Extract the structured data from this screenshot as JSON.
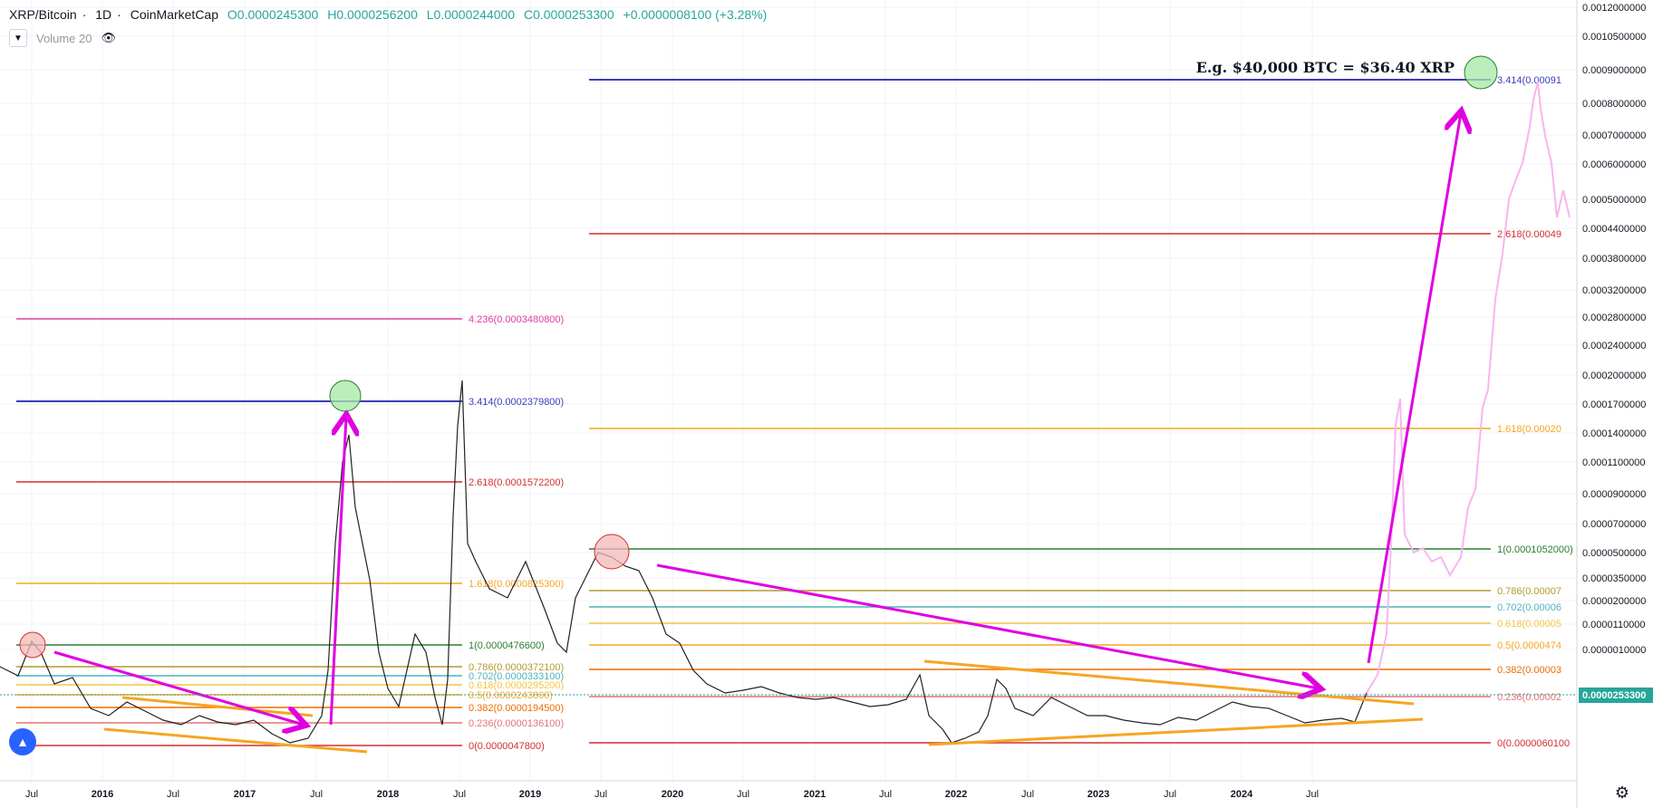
{
  "header": {
    "symbol": "XRP/Bitcoin",
    "interval": "1D",
    "source": "CoinMarketCap",
    "open": "O0.0000245300",
    "high": "H0.0000256200",
    "low": "L0.0000244000",
    "close": "C0.0000253300",
    "change": "+0.0000008100 (+3.28%)"
  },
  "volume_label": "Volume 20",
  "annotation": "E.g. $40,000 BTC = $36.40 XRP",
  "last_price_tag": "0.0000253300",
  "colors": {
    "accent_up": "#26a69a",
    "arrow": "#e000e0",
    "trendline": "#f5a623",
    "projection": "#f8b5f0",
    "price": "#222222"
  },
  "chart_data": {
    "type": "line",
    "title": "XRP/Bitcoin · 1D · CoinMarketCap",
    "y_axis_ticks": [
      "0.0012000000",
      "0.0010500000",
      "0.0009000000",
      "0.0008000000",
      "0.0007000000",
      "0.0006000000",
      "0.0005000000",
      "0.0004400000",
      "0.0003800000",
      "0.0003200000",
      "0.0002800000",
      "0.0002400000",
      "0.0002000000",
      "0.0001700000",
      "0.0001400000",
      "0.0001100000",
      "0.0000900000",
      "0.0000700000",
      "0.0000500000",
      "0.0000350000",
      "0.0000200000",
      "0.0000110000",
      "0.0000010000"
    ],
    "x_axis_ticks": [
      "Jul",
      "2016",
      "Jul",
      "2017",
      "Jul",
      "2018",
      "Jul",
      "2019",
      "Jul",
      "2020",
      "Jul",
      "2021",
      "Jul",
      "2022",
      "Jul",
      "2023",
      "Jul",
      "2024",
      "Jul"
    ],
    "fib_left": [
      {
        "label": "4.236(0.0003480800)",
        "color": "#e040a0",
        "price": 0.00034808
      },
      {
        "label": "3.414(0.0002379800)",
        "color": "#3c3cbf",
        "price": 0.00023798
      },
      {
        "label": "2.618(0.0001572200)",
        "color": "#d32f2f",
        "price": 0.00015722
      },
      {
        "label": "1.618(0.0000825300)",
        "color": "#f5a623",
        "price": 8.253e-05
      },
      {
        "label": "1(0.0000476600)",
        "color": "#2e7d32",
        "price": 4.766e-05
      },
      {
        "label": "0.786(0.0000372100)",
        "color": "#b59b2c",
        "price": 3.721e-05
      },
      {
        "label": "0.702(0.0000333100)",
        "color": "#4fb3bf",
        "price": 3.331e-05
      },
      {
        "label": "0.618(0.0000295200)",
        "color": "#f5c542",
        "price": 2.952e-05
      },
      {
        "label": "0.5(0.0000243800)",
        "color": "#f5a623",
        "price": 2.438e-05
      },
      {
        "label": "0.382(0.0000194500)",
        "color": "#ef6c00",
        "price": 1.945e-05
      },
      {
        "label": "0.236(0.0000136100)",
        "color": "#e57373",
        "price": 1.361e-05
      },
      {
        "label": "0(0.0000047800)",
        "color": "#d32f2f",
        "price": 4.78e-06
      }
    ],
    "fib_right": [
      {
        "label": "3.414(0.00091",
        "color": "#3c3cbf"
      },
      {
        "label": "2.618(0.00049",
        "color": "#d32f2f"
      },
      {
        "label": "1.618(0.00020",
        "color": "#f5a623"
      },
      {
        "label": "1(0.0001052000)",
        "color": "#2e7d32"
      },
      {
        "label": "0.786(0.00007",
        "color": "#b59b2c"
      },
      {
        "label": "0.702(0.00006",
        "color": "#4fb3bf"
      },
      {
        "label": "0.618(0.00005",
        "color": "#f5c542"
      },
      {
        "label": "0.5(0.0000474",
        "color": "#f5a623"
      },
      {
        "label": "0.382(0.00003",
        "color": "#ef6c00"
      },
      {
        "label": "0.236(0.00002",
        "color": "#e57373"
      },
      {
        "label": "0(0.0000060100",
        "color": "#d32f2f"
      }
    ]
  }
}
